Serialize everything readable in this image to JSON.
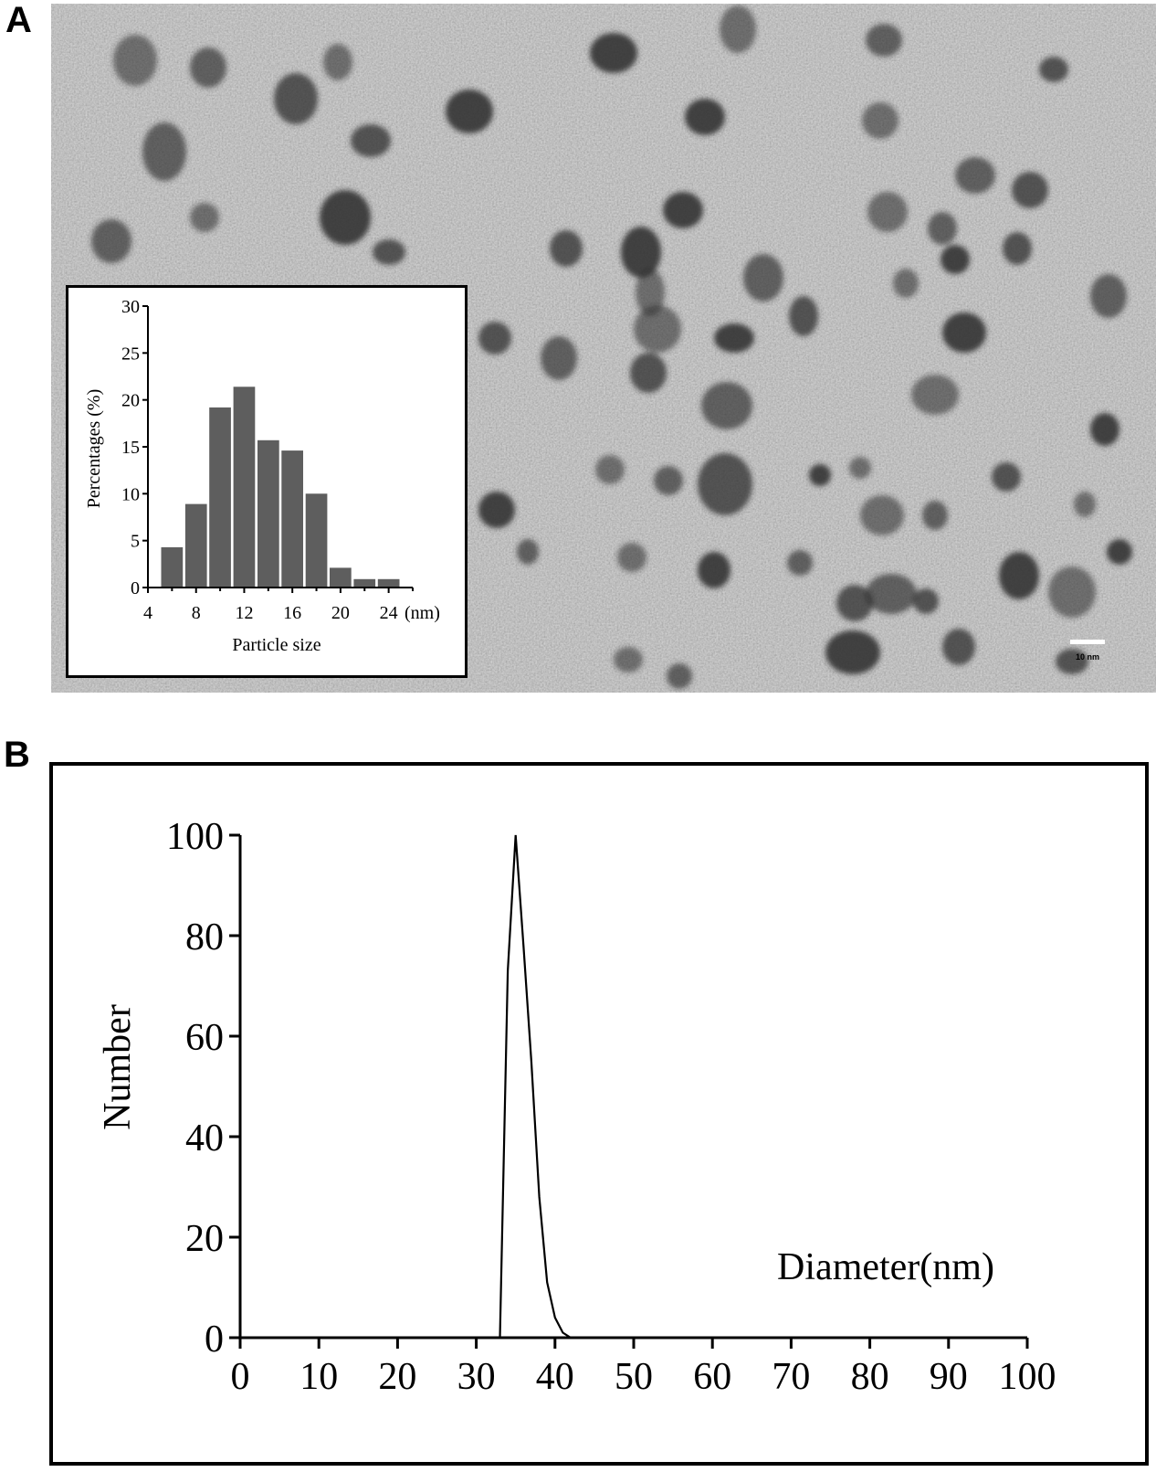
{
  "panels": {
    "a_label": "A",
    "b_label": "B"
  },
  "tem_image": {
    "scale_bar_label": "10 nm"
  },
  "chart_data": [
    {
      "type": "bar",
      "xlabel": "Particle size",
      "x_unit": "(nm)",
      "ylabel": "Percentages (%)",
      "xlim": [
        4,
        26
      ],
      "ylim": [
        0,
        30
      ],
      "x_ticks": [
        4,
        8,
        12,
        16,
        20,
        24
      ],
      "y_ticks": [
        0,
        5,
        10,
        15,
        20,
        25,
        30
      ],
      "bin_width": 1.8,
      "bar_color": "#5e5e5e",
      "categories": [
        6,
        8,
        10,
        12,
        14,
        16,
        18,
        20,
        22,
        24
      ],
      "values": [
        4.3,
        8.9,
        19.2,
        21.4,
        15.7,
        14.6,
        10.0,
        2.1,
        0.9,
        0.9
      ]
    },
    {
      "type": "line",
      "xlabel": "Diameter(nm)",
      "ylabel": "Number",
      "xlim": [
        0,
        100
      ],
      "ylim": [
        0,
        100
      ],
      "x_ticks": [
        0,
        10,
        20,
        30,
        40,
        50,
        60,
        70,
        80,
        90,
        100
      ],
      "y_ticks": [
        0,
        20,
        40,
        60,
        80,
        100
      ],
      "line_color": "#000000",
      "x": [
        0,
        33,
        34,
        35,
        36,
        37,
        38,
        39,
        40,
        41,
        42,
        100
      ],
      "y": [
        0,
        0,
        73,
        100,
        78,
        55,
        28,
        11,
        4,
        1,
        0,
        0
      ]
    }
  ]
}
